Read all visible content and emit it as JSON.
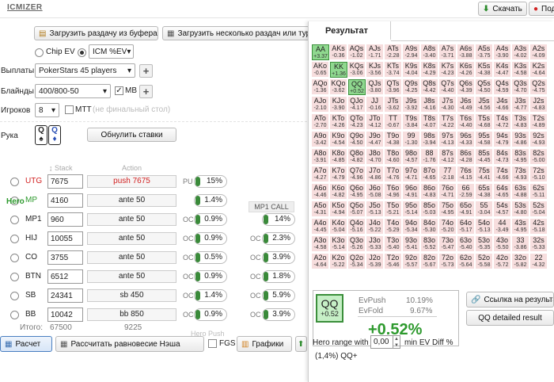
{
  "app": {
    "logo": "ICMIZER"
  },
  "top": {
    "download": "Скачать",
    "share": "Под"
  },
  "toolbar": {
    "load_clipboard": "Загрузить раздачу из буфера",
    "load_multiple": "Загрузить несколько раздач или тур"
  },
  "model": {
    "chip_ev": "Chip EV",
    "icm": "ICM %EV"
  },
  "payouts": {
    "label": "Выплаты",
    "value": "PokerStars 45 players"
  },
  "blinds": {
    "label": "Блайнды",
    "value": "400/800-50",
    "mb": "MB"
  },
  "players": {
    "label": "Игроков",
    "value": "8",
    "mtt": "MTT",
    "mtt_note": "(не финальный стол)"
  },
  "hand": {
    "label": "Рука",
    "reset": "Обнулить ставки"
  },
  "table": {
    "stack_header": "Stack",
    "action_header": "Action",
    "total_label": "Итого:",
    "total_stack": "67500",
    "total_action": "9225",
    "hero_label": "Hero",
    "hero_push": "Hero Push",
    "pu": "PU",
    "mp1call": "MP1 CALL",
    "rows": [
      {
        "pos": "UTG",
        "stack": "7675",
        "action": "push 7675",
        "pre": "PU",
        "pct": "15%",
        "pct2": ""
      },
      {
        "pos": "MP",
        "stack": "4160",
        "action": "ante 50",
        "pre": "",
        "pct": "1.4%",
        "pct2": ""
      },
      {
        "pos": "MP1",
        "stack": "960",
        "action": "ante 50",
        "pre": "OC",
        "pct": "0.9%",
        "pct2": "14%"
      },
      {
        "pos": "HIJ",
        "stack": "10055",
        "action": "ante 50",
        "pre": "OC",
        "pct": "0.9%",
        "pct2": "2.3%"
      },
      {
        "pos": "CO",
        "stack": "3755",
        "action": "ante 50",
        "pre": "OC",
        "pct": "0.5%",
        "pct2": "3.9%"
      },
      {
        "pos": "BTN",
        "stack": "6512",
        "action": "ante 50",
        "pre": "OC",
        "pct": "0.9%",
        "pct2": "1.8%"
      },
      {
        "pos": "SB",
        "stack": "24341",
        "action": "sb 450",
        "pre": "OC",
        "pct": "1.4%",
        "pct2": "5.9%"
      },
      {
        "pos": "BB",
        "stack": "10042",
        "action": "bb 850",
        "pre": "OC",
        "pct": "0.9%",
        "pct2": "3.9%"
      }
    ]
  },
  "bottom": {
    "calc": "Расчет",
    "nash": "Рассчитать равновесие Нэша",
    "fgs": "FGS",
    "charts": "Графики"
  },
  "result": {
    "title": "Результат",
    "grid": [
      [
        "AA|+3.37",
        "AKs|-0.36",
        "AQs|-1.02",
        "AJs|-1.71",
        "ATs|-2.28",
        "A9s|-2.94",
        "A8s|-3.40",
        "A7s|-3.71",
        "A6s|-3.88",
        "A5s|-3.75",
        "A4s|-3.90",
        "A3s|-4.02",
        "A2s|-4.09"
      ],
      [
        "AKo|-0.65",
        "KK|+1.36",
        "KQs|-3.06",
        "KJs|-3.56",
        "KTs|-3.74",
        "K9s|-4.04",
        "K8s|-4.29",
        "K7s|-4.23",
        "K6s|-4.26",
        "K5s|-4.38",
        "K4s|-4.47",
        "K3s|-4.58",
        "K2s|-4.64"
      ],
      [
        "AQo|-1.36",
        "KQo|-3.62",
        "QQ|+0.52",
        "QJs|-3.80",
        "QTs|-3.96",
        "Q9s|-4.25",
        "Q8s|-4.42",
        "Q7s|-4.40",
        "Q6s|-4.39",
        "Q5s|-4.50",
        "Q4s|-4.59",
        "Q3s|-4.70",
        "Q2s|-4.75"
      ],
      [
        "AJo|-2.10",
        "KJo|-3.90",
        "QJo|-4.17",
        "JJ|-0.16",
        "JTs|-3.62",
        "J9s|-3.92",
        "J8s|-4.16",
        "J7s|-4.30",
        "J6s|-4.49",
        "J5s|-4.56",
        "J4s|-4.66",
        "J3s|-4.77",
        "J2s|-4.83"
      ],
      [
        "ATo|-2.70",
        "KTo|-4.26",
        "QTo|-4.23",
        "JTo|-4.12",
        "TT|-0.67",
        "T9s|-3.84",
        "T8s|-4.07",
        "T7s|-4.22",
        "T6s|-4.40",
        "T5s|-4.68",
        "T4s|-4.72",
        "T3s|-4.83",
        "T2s|-4.89"
      ],
      [
        "A9o|-3.42",
        "K9o|-4.54",
        "Q9o|-4.50",
        "J9o|-4.47",
        "T9o|-4.38",
        "99|-1.30",
        "98s|-3.94",
        "97s|-4.13",
        "96s|-4.33",
        "95s|-4.58",
        "94s|-4.79",
        "93s|-4.86",
        "92s|-4.93"
      ],
      [
        "A8o|-3.91",
        "K8o|-4.85",
        "Q8o|-4.82",
        "J8o|-4.70",
        "T8o|-4.60",
        "98o|-4.57",
        "88|-1.76",
        "87s|-4.12",
        "86s|-4.28",
        "85s|-4.45",
        "84s|-4.73",
        "83s|-4.95",
        "82s|-5.00"
      ],
      [
        "A7o|-4.27",
        "K7o|-4.79",
        "Q7o|-4.96",
        "J7o|-4.86",
        "T7o|-4.76",
        "97o|-4.71",
        "87o|-4.65",
        "77|-2.18",
        "76s|-4.15",
        "75s|-4.41",
        "74s|-4.66",
        "73s|-4.93",
        "72s|-5.10"
      ],
      [
        "A6o|-4.46",
        "K6o|-4.82",
        "Q6o|-4.95",
        "J6o|-5.08",
        "T6o|-4.96",
        "96o|-4.91",
        "86o|-4.83",
        "76o|-4.71",
        "66|-2.59",
        "65s|-4.38",
        "64s|-4.65",
        "63s|-4.88",
        "62s|-5.11"
      ],
      [
        "A5o|-4.31",
        "K5o|-4.94",
        "Q5o|-5.07",
        "J5o|-5.13",
        "T5o|-5.21",
        "95o|-5.14",
        "85o|-5.03",
        "75o|-4.95",
        "65o|-4.91",
        "55|-3.04",
        "54s|-4.57",
        "53s|-4.80",
        "52s|-5.04"
      ],
      [
        "A4o|-4.45",
        "K4o|-5.04",
        "Q4o|-5.16",
        "J4o|-5.22",
        "T4o|-5.29",
        "94o|-5.34",
        "84o|-5.30",
        "74o|-5.20",
        "64o|-5.17",
        "54o|-5.13",
        "44|-3.49",
        "43s|-4.95",
        "42s|-5.18"
      ],
      [
        "A3o|-4.58",
        "K3o|-5.14",
        "Q3o|-5.26",
        "J3o|-5.33",
        "T3o|-5.40",
        "93o|-5.41",
        "83o|-5.52",
        "73o|-5.47",
        "63o|-5.40",
        "53o|-5.35",
        "43o|-5.50",
        "33|-3.86",
        "32s|-5.33"
      ],
      [
        "A2o|-4.64",
        "K2o|-5.22",
        "Q2o|-5.34",
        "J2o|-5.39",
        "T2o|-5.46",
        "92o|-5.57",
        "82o|-5.67",
        "72o|-5.73",
        "62o|-5.64",
        "52o|-5.58",
        "42o|-5.72",
        "32o|-5.82",
        "22|-4.32"
      ]
    ],
    "hero_hand": "QQ",
    "hero_ev": "+0.52",
    "evpush_label": "EvPush",
    "evpush": "10.19%",
    "evfold_label": "EvFold",
    "evfold": "9.67%",
    "diff": "+0.52%",
    "link": "Ссылка на результат",
    "detailed": "QQ detailed result",
    "range_label": "Hero range with",
    "range_value": "0,00",
    "range_suffix": "min EV Diff %",
    "range_result": "(1,4%) QQ+"
  },
  "colors": {
    "accent": "#d22222",
    "positive": "#2e9a2e",
    "cell_negative": "#f7dede"
  }
}
